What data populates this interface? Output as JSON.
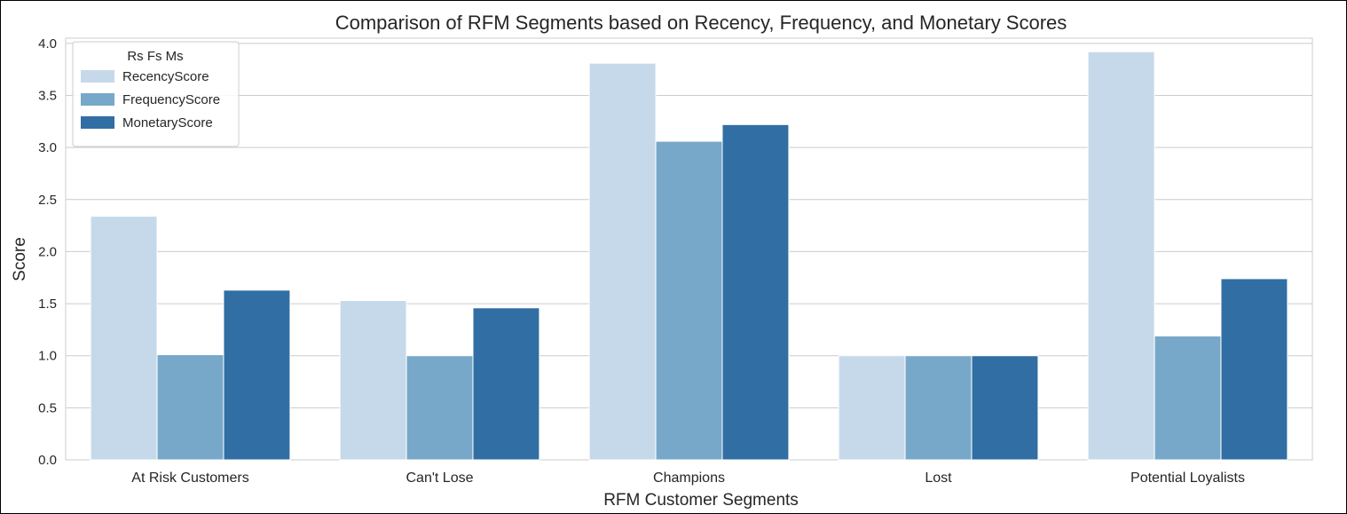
{
  "chart_data": {
    "type": "bar",
    "title": "Comparison of RFM Segments based on Recency, Frequency, and Monetary Scores",
    "xlabel": "RFM Customer Segments",
    "ylabel": "Score",
    "categories": [
      "At Risk Customers",
      "Can't Lose",
      "Champions",
      "Lost",
      "Potential Loyalists"
    ],
    "series": [
      {
        "name": "RecencyScore",
        "color": "#c6d9ea",
        "values": [
          2.34,
          1.53,
          3.81,
          1.0,
          3.92
        ]
      },
      {
        "name": "FrequencyScore",
        "color": "#77a8c9",
        "values": [
          1.01,
          1.0,
          3.06,
          1.0,
          1.19
        ]
      },
      {
        "name": "MonetaryScore",
        "color": "#316ea4",
        "values": [
          1.63,
          1.46,
          3.22,
          1.0,
          1.74
        ]
      }
    ],
    "ylim": [
      0,
      4.05
    ],
    "yticks": [
      "0.0",
      "0.5",
      "1.0",
      "1.5",
      "2.0",
      "2.5",
      "3.0",
      "3.5",
      "4.0"
    ],
    "ytick_values": [
      0,
      0.5,
      1.0,
      1.5,
      2.0,
      2.5,
      3.0,
      3.5,
      4.0
    ],
    "grid": true,
    "legend": {
      "title": "Rs Fs Ms",
      "placement": "top-left"
    }
  }
}
